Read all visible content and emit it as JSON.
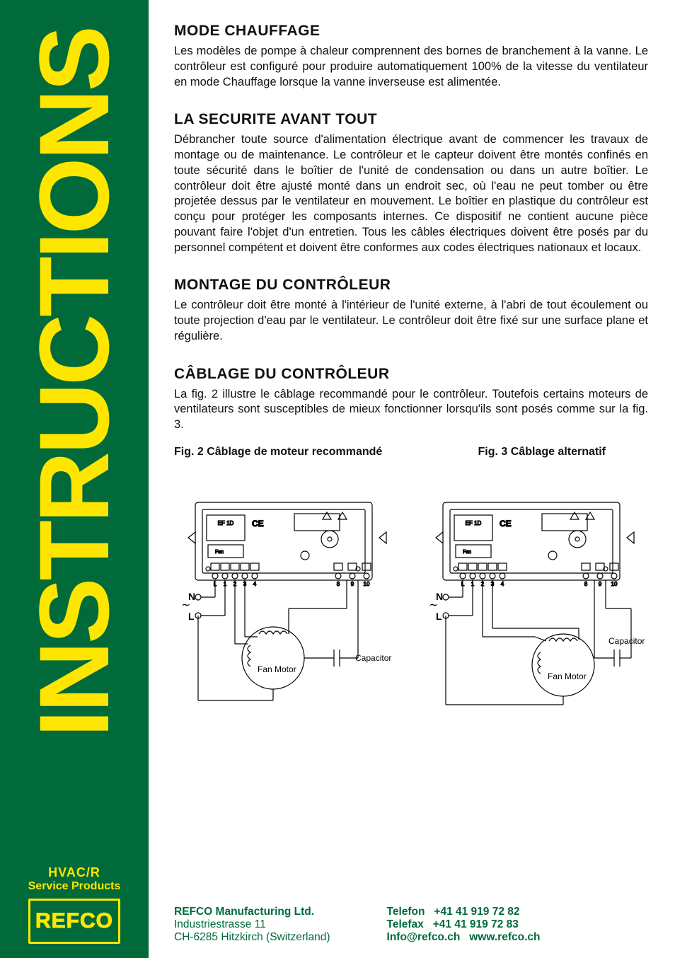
{
  "sidebar": {
    "title": "INSTRUCTIONS",
    "tagline1": "HVAC/R",
    "tagline2": "Service Products",
    "logo_text": "REFCO"
  },
  "sections": {
    "s1": {
      "heading": "Mode Chauffage",
      "body": "Les modèles de pompe à chaleur comprennent des bornes de branchement à la vanne. Le contrôleur est configuré pour produire automatiquement 100% de la vitesse du ventilateur en mode Chauffage lorsque la vanne inverseuse est alimentée."
    },
    "s2": {
      "heading": "La Securite Avant Tout",
      "body": "Débrancher toute source d'alimentation électrique avant de commencer les travaux de montage ou de maintenance. Le contrôleur et le capteur doivent être montés confinés en toute sécurité dans le boîtier de l'unité de condensation ou dans un autre boîtier. Le contrôleur doit être ajusté monté dans un endroit sec, où l'eau ne peut tomber ou être projetée dessus par le ventilateur en mouvement. Le boîtier en plastique du contrôleur est conçu pour protéger les composants internes. Ce dispositif ne contient aucune pièce pouvant faire l'objet d'un entretien. Tous les câbles électriques doivent être posés par du personnel compétent et doivent être conformes aux codes électriques nationaux et locaux."
    },
    "s3": {
      "heading": "Montage du Contrôleur",
      "body": "Le contrôleur doit être monté à l'intérieur de l'unité externe, à l'abri de tout écoulement ou toute projection d'eau par le ventilateur. Le contrôleur doit être fixé sur une surface plane et régulière."
    },
    "s4": {
      "heading": "Câblage du Contrôleur",
      "body": "La fig. 2 illustre le câblage recommandé pour le contrôleur. Toutefois certains moteurs de ventilateurs sont susceptibles de mieux fonctionner lorsqu'ils sont posés comme sur la fig. 3."
    }
  },
  "figures": {
    "fig2_caption": "Fig. 2 Câblage de moteur recommandé",
    "fig3_caption": "Fig. 3 Câblage alternatif",
    "labels": {
      "N": "N",
      "L": "L",
      "fan_motor": "Fan Motor",
      "capacitor": "Capacitor",
      "ce": "CE",
      "terminals": [
        "L",
        "1",
        "2",
        "3",
        "4",
        "8",
        "9",
        "10"
      ]
    },
    "style": {
      "stroke": "#000000",
      "stroke_width": 1.2,
      "background": "#ffffff"
    }
  },
  "footer": {
    "company": "REFCO Manufacturing Ltd.",
    "addr1": "Industriestrasse 11",
    "addr2": "CH-6285 Hitzkirch (Switzerland)",
    "tel_label": "Telefon",
    "tel": "+41 41 919 72 82",
    "fax_label": "Telefax",
    "fax": "+41 41 919 72 83",
    "email": "Info@refco.ch",
    "web": "www.refco.ch"
  },
  "colors": {
    "brand_green": "#006a3a",
    "brand_yellow": "#ffe600",
    "text": "#111111"
  }
}
